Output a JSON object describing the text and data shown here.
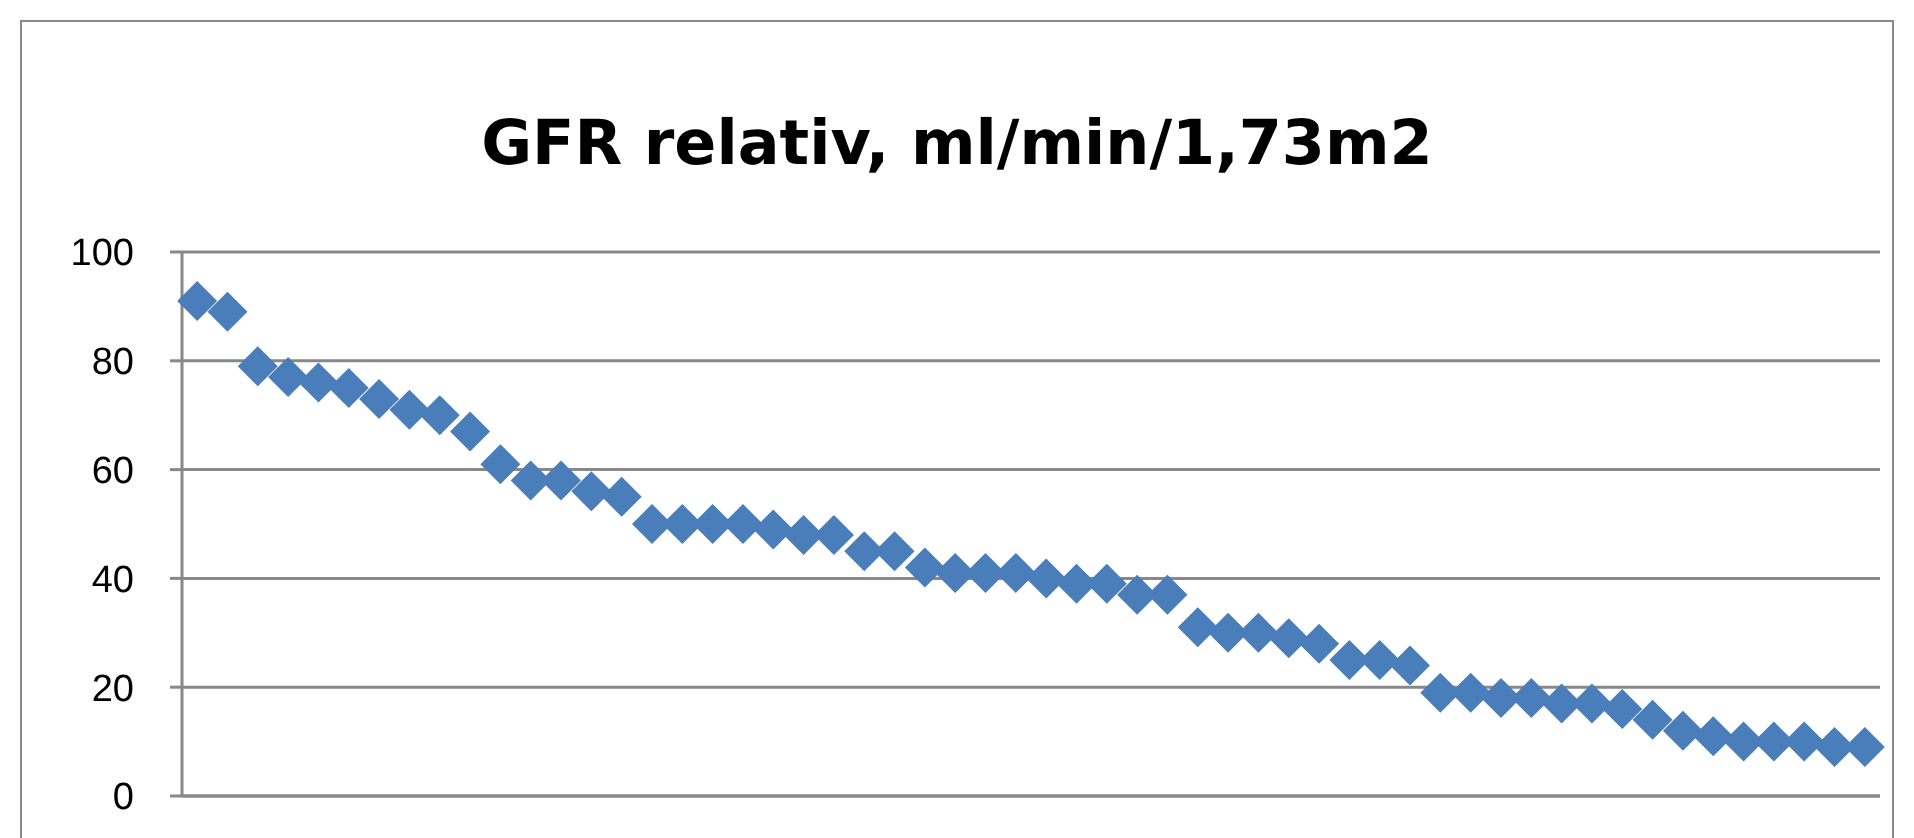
{
  "chart_data": {
    "type": "scatter",
    "title": "GFR relativ, ml/min/1,73m2",
    "categories": [
      null,
      null,
      null,
      null,
      null,
      null,
      null,
      null,
      null,
      null,
      null,
      null,
      null,
      null,
      null,
      null,
      null,
      null,
      null,
      null,
      null,
      null,
      null,
      null,
      null,
      null,
      null,
      null,
      null,
      null,
      null,
      null,
      null,
      null,
      null,
      null,
      null,
      null,
      null,
      null,
      null,
      null,
      null,
      null,
      null,
      null,
      null,
      null,
      null,
      null,
      null,
      null,
      null,
      null,
      null,
      null
    ],
    "series": [
      {
        "color": "#4a7ebb",
        "values": [
          91,
          89,
          79,
          77,
          76,
          75,
          73,
          71,
          70,
          67,
          61,
          58,
          58,
          56,
          55,
          50,
          50,
          50,
          50,
          49,
          48,
          48,
          45,
          45,
          42,
          41,
          41,
          41,
          40,
          39,
          39,
          37,
          37,
          31,
          30,
          30,
          29,
          28,
          25,
          25,
          24,
          19,
          19,
          18,
          18,
          17,
          17,
          16,
          14,
          12,
          11,
          10,
          10,
          10,
          9,
          9
        ]
      }
    ],
    "ylim": [
      0,
      100
    ],
    "yticks": [
      0,
      20,
      40,
      60,
      80,
      100
    ],
    "grid": "y",
    "marker": "diamond"
  }
}
